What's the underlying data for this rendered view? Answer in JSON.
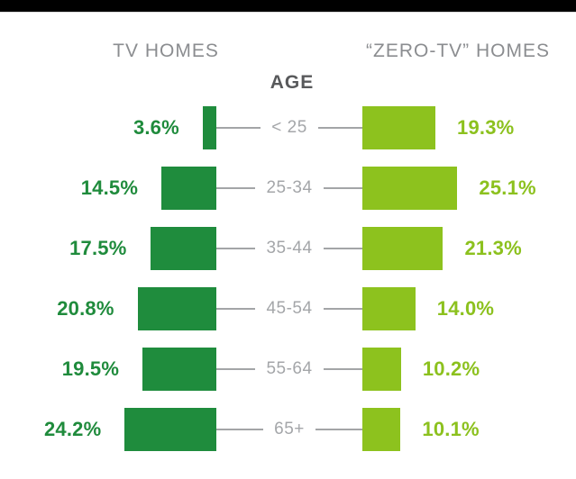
{
  "page": {
    "background": "#ffffff",
    "top_bar_color": "#000000"
  },
  "colors": {
    "tv_green": "#1f8c3d",
    "tv_text_green": "#1f8b3c",
    "zero_tv_green": "#8dc21e",
    "zero_tv_text_green": "#8cc11e",
    "header_gray": "#8b8d90",
    "age_title_gray": "#58595b",
    "age_label_gray": "#a4a6a9",
    "connector_gray": "#a3a5a7"
  },
  "header": {
    "left_label": "TV HOMES",
    "right_label": "“ZERO-TV” HOMES",
    "center_label": "AGE"
  },
  "chart_data": {
    "type": "bar",
    "variant": "diverging-horizontal",
    "title": "",
    "left_header": "TV HOMES",
    "right_header": "“ZERO-TV” HOMES",
    "center_axis_label": "AGE",
    "categories": [
      "< 25",
      "25-34",
      "35-44",
      "45-54",
      "55-64",
      "65+"
    ],
    "series": [
      {
        "name": "TV HOMES",
        "side": "left",
        "color": "#1f8c3d",
        "values": [
          3.6,
          14.5,
          17.5,
          20.8,
          19.5,
          24.2
        ],
        "labels": [
          "3.6%",
          "14.5%",
          "17.5%",
          "20.8%",
          "19.5%",
          "24.2%"
        ]
      },
      {
        "name": "“ZERO-TV” HOMES",
        "side": "right",
        "color": "#8dc21e",
        "values": [
          19.3,
          25.1,
          21.3,
          14.0,
          10.2,
          10.1
        ],
        "labels": [
          "19.3%",
          "25.1%",
          "21.3%",
          "14.0%",
          "10.2%",
          "10.1%"
        ]
      }
    ],
    "value_unit": "%",
    "xlim_each_side": [
      0,
      26
    ],
    "gridlines": false,
    "legend": "none"
  }
}
